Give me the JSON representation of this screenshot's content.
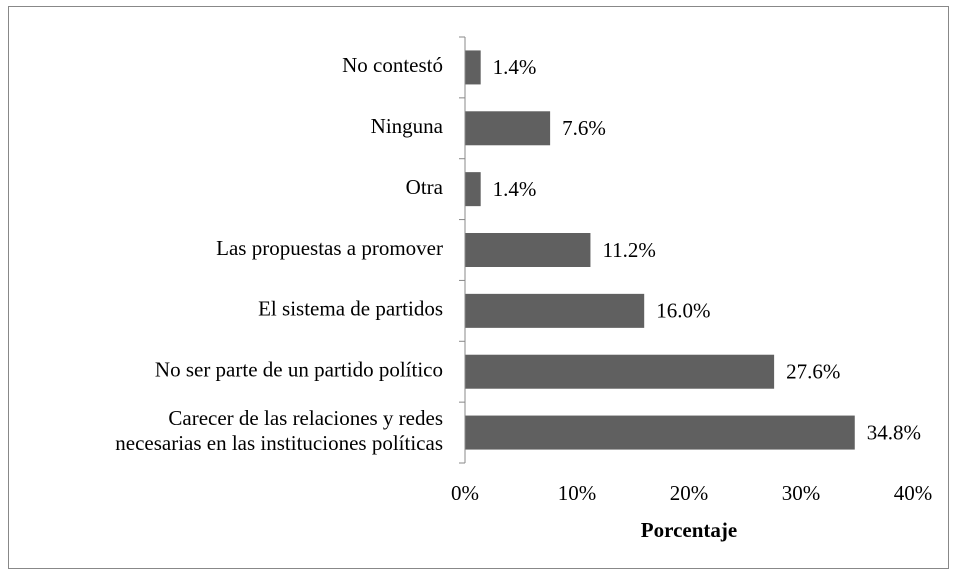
{
  "chart_data": {
    "type": "barh",
    "xlabel": "Porcentaje",
    "categories": [
      "No contestó",
      "Ninguna",
      "Otra",
      "Las propuestas a promover",
      "El sistema de partidos",
      "No ser parte de un partido político",
      "Carecer de las relaciones y redes\nnecesarias en las instituciones políticas"
    ],
    "values": [
      1.4,
      7.6,
      1.4,
      11.2,
      16.0,
      27.6,
      34.8
    ],
    "value_labels": [
      "1.4%",
      "7.6%",
      "1.4%",
      "11.2%",
      "16.0%",
      "27.6%",
      "34.8%"
    ],
    "color": "#606060",
    "xlim": [
      0,
      40
    ],
    "xticks": [
      {
        "value": 0,
        "label": "0%"
      },
      {
        "value": 10,
        "label": "10%"
      },
      {
        "value": 20,
        "label": "20%"
      },
      {
        "value": 30,
        "label": "30%"
      },
      {
        "value": 40,
        "label": "40%"
      }
    ],
    "grid": false
  }
}
